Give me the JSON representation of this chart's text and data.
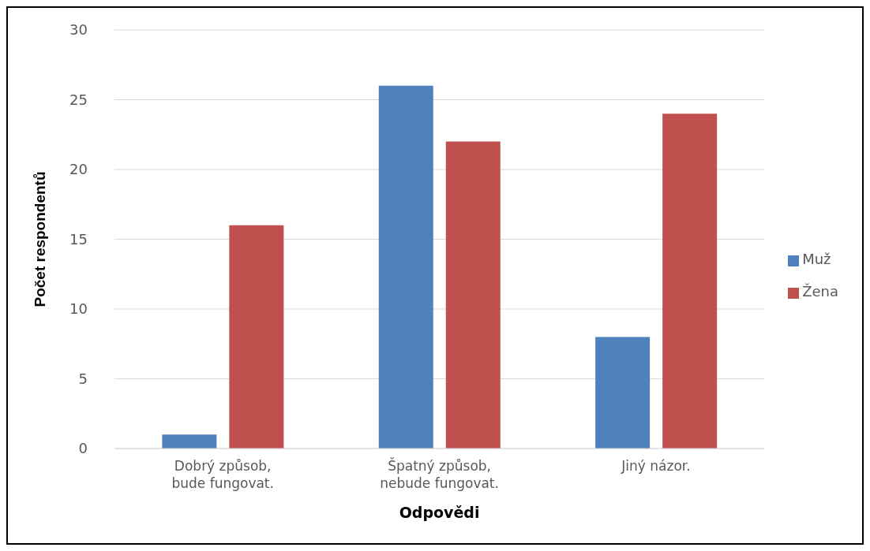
{
  "chart_data": {
    "type": "bar",
    "xlabel": "Odpovědi",
    "ylabel": "Počet respondentů",
    "categories": [
      "Dobrý způsob, bude fungovat.",
      "Špatný způsob, nebude fungovat.",
      "Jiný názor."
    ],
    "series": [
      {
        "name": "Muž",
        "color": "#4f81bd",
        "values": [
          1,
          26,
          8
        ]
      },
      {
        "name": "Žena",
        "color": "#c0504d",
        "values": [
          16,
          22,
          24
        ]
      }
    ],
    "ylim": [
      0,
      30
    ],
    "yticks": [
      0,
      5,
      10,
      15,
      20,
      25,
      30
    ],
    "grid": "y",
    "legend": "right"
  }
}
